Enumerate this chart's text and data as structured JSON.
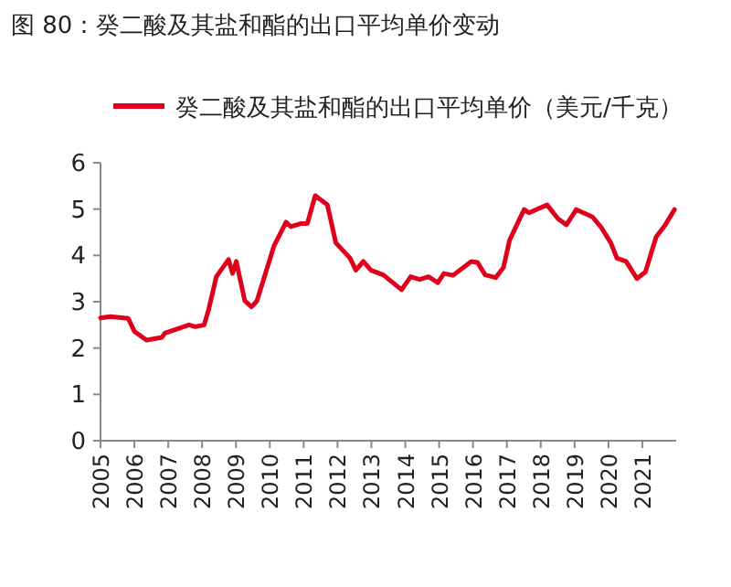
{
  "chart_data": {
    "type": "line",
    "title": "图 80：癸二酸及其盐和酯的出口平均单价变动",
    "xlim": [
      2005,
      2022
    ],
    "xticks": [
      2005,
      2006,
      2007,
      2008,
      2009,
      2010,
      2011,
      2012,
      2013,
      2014,
      2015,
      2016,
      2017,
      2018,
      2019,
      2020,
      2021
    ],
    "ylim": [
      0,
      6
    ],
    "yticks": [
      0,
      1,
      2,
      3,
      4,
      5,
      6
    ],
    "grid": false,
    "legend": "top",
    "series": [
      {
        "name": "癸二酸及其盐和酯的出口平均单价（美元/千克）",
        "color": "#e0001b",
        "x": [
          2005.0,
          2005.28,
          2005.82,
          2006.0,
          2006.36,
          2006.81,
          2006.9,
          2007.61,
          2007.8,
          2008.06,
          2008.19,
          2008.42,
          2008.78,
          2008.9,
          2009.01,
          2009.26,
          2009.46,
          2009.62,
          2010.12,
          2010.48,
          2010.62,
          2010.93,
          2011.11,
          2011.34,
          2011.7,
          2011.95,
          2012.37,
          2012.54,
          2012.76,
          2012.99,
          2013.35,
          2013.89,
          2014.16,
          2014.42,
          2014.69,
          2014.96,
          2015.14,
          2015.41,
          2015.95,
          2016.13,
          2016.36,
          2016.67,
          2016.9,
          2017.08,
          2017.51,
          2017.65,
          2018.19,
          2018.51,
          2018.76,
          2019.05,
          2019.53,
          2019.8,
          2020.07,
          2020.25,
          2020.52,
          2020.84,
          2021.09,
          2021.41,
          2021.68,
          2021.95
        ],
        "values": [
          2.65,
          2.68,
          2.64,
          2.36,
          2.17,
          2.23,
          2.32,
          2.5,
          2.46,
          2.5,
          2.82,
          3.54,
          3.91,
          3.61,
          3.87,
          3.02,
          2.89,
          3.02,
          4.2,
          4.72,
          4.62,
          4.69,
          4.69,
          5.29,
          5.09,
          4.27,
          3.94,
          3.68,
          3.87,
          3.68,
          3.58,
          3.26,
          3.54,
          3.48,
          3.54,
          3.41,
          3.61,
          3.57,
          3.87,
          3.85,
          3.58,
          3.52,
          3.74,
          4.33,
          4.99,
          4.92,
          5.09,
          4.79,
          4.66,
          4.99,
          4.83,
          4.59,
          4.27,
          3.94,
          3.87,
          3.5,
          3.64,
          4.4,
          4.66,
          4.99
        ]
      }
    ]
  }
}
